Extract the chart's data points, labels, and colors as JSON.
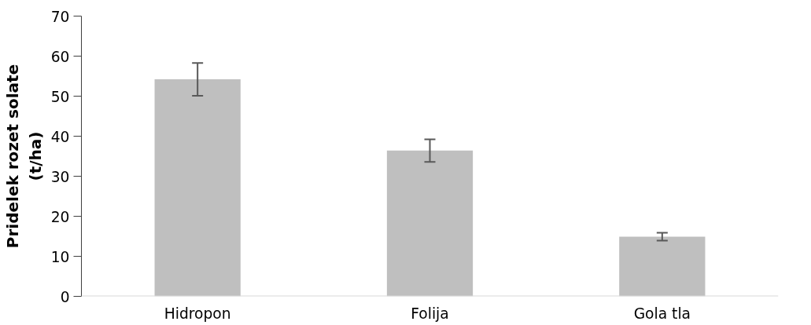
{
  "chart_data": {
    "type": "bar",
    "ylabel": "Pridelek rozet solate\n(t/ha)",
    "categories": [
      "Hidropon",
      "Folija",
      "Gola tla"
    ],
    "values": [
      54.2,
      36.4,
      14.9
    ],
    "errors": [
      4.1,
      2.8,
      1.0
    ],
    "color": "#bfbfbf",
    "ylim": [
      0,
      70
    ],
    "yticks": [
      0,
      10,
      20,
      30,
      40,
      50,
      60,
      70
    ],
    "grid": false
  }
}
